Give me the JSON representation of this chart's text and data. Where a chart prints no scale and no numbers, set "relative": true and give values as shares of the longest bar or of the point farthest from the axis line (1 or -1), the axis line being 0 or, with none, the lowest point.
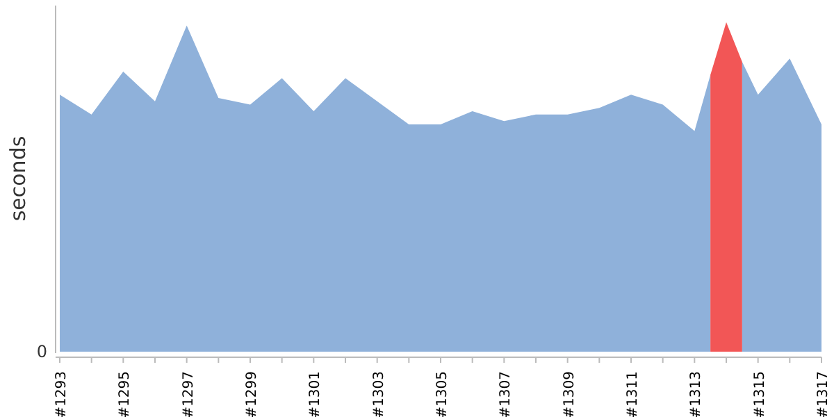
{
  "chart_data": {
    "type": "area",
    "relative": true,
    "ylabel": "seconds",
    "x": [
      1293,
      1294,
      1295,
      1296,
      1297,
      1298,
      1299,
      1300,
      1301,
      1302,
      1303,
      1304,
      1305,
      1306,
      1307,
      1308,
      1309,
      1310,
      1311,
      1312,
      1313,
      1313.5,
      1314,
      1314.5,
      1315,
      1316,
      1317
    ],
    "series": [
      {
        "color": "#8fb1da",
        "values": [
          0.78,
          0.72,
          0.85,
          0.76,
          0.99,
          0.77,
          0.75,
          0.83,
          0.73,
          0.83,
          0.76,
          0.69,
          0.69,
          0.73,
          0.7,
          0.72,
          0.72,
          0.74,
          0.78,
          0.75,
          0.67,
          0.84,
          null,
          0.88,
          0.78,
          0.89,
          0.69
        ]
      },
      {
        "color": "#f25656",
        "x": [
          1313.5,
          1314,
          1314.5
        ],
        "values": [
          0.84,
          1,
          0.88
        ]
      }
    ],
    "xlim": [
      1293,
      1317
    ],
    "xticks": [
      {
        "value": 1293,
        "label": "#1293"
      },
      {
        "value": 1294,
        "label": null
      },
      {
        "value": 1295,
        "label": "#1295"
      },
      {
        "value": 1296,
        "label": null
      },
      {
        "value": 1297,
        "label": "#1297"
      },
      {
        "value": 1298,
        "label": null
      },
      {
        "value": 1299,
        "label": "#1299"
      },
      {
        "value": 1300,
        "label": null
      },
      {
        "value": 1301,
        "label": "#1301"
      },
      {
        "value": 1302,
        "label": null
      },
      {
        "value": 1303,
        "label": "#1303"
      },
      {
        "value": 1304,
        "label": null
      },
      {
        "value": 1305,
        "label": "#1305"
      },
      {
        "value": 1306,
        "label": null
      },
      {
        "value": 1307,
        "label": "#1307"
      },
      {
        "value": 1308,
        "label": null
      },
      {
        "value": 1309,
        "label": "#1309"
      },
      {
        "value": 1310,
        "label": null
      },
      {
        "value": 1311,
        "label": "#1311"
      },
      {
        "value": 1312,
        "label": null
      },
      {
        "value": 1313,
        "label": "#1313"
      },
      {
        "value": 1314,
        "label": null
      },
      {
        "value": 1315,
        "label": "#1315"
      },
      {
        "value": 1316,
        "label": null
      },
      {
        "value": 1317,
        "label": "#1317"
      }
    ],
    "annotations": [
      "0"
    ]
  }
}
